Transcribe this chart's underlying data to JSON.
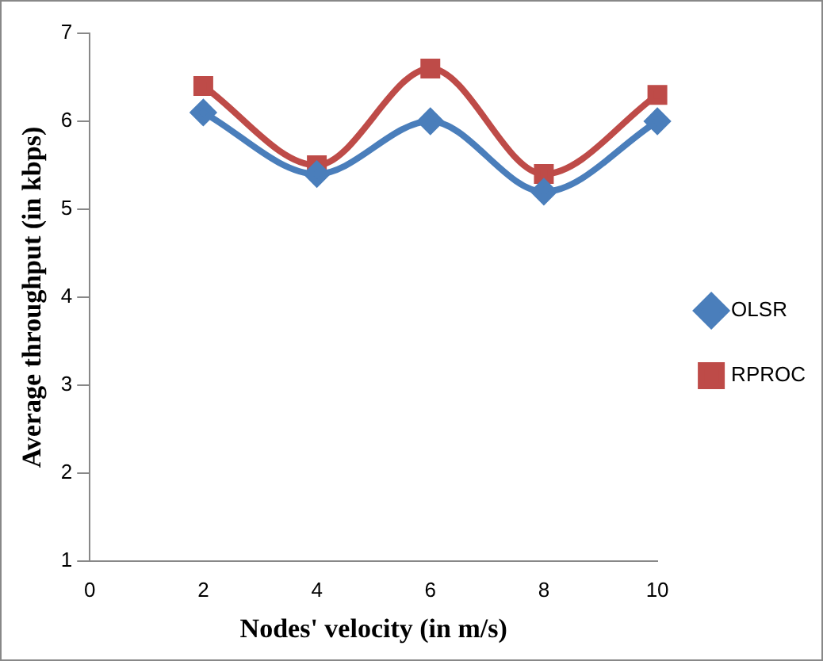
{
  "chart_data": {
    "type": "line",
    "xlabel": "Nodes' velocity (in m/s)",
    "ylabel": "Average throughput (in kbps)",
    "x": [
      2,
      4,
      6,
      8,
      10
    ],
    "series": [
      {
        "name": "OLSR",
        "color": "#4a7ebb",
        "marker": "diamond",
        "values": [
          6.1,
          5.4,
          6.0,
          5.2,
          6.0
        ]
      },
      {
        "name": "RPROC",
        "color": "#be4b48",
        "marker": "square",
        "values": [
          6.4,
          5.5,
          6.6,
          5.4,
          6.3
        ]
      }
    ],
    "xlim": [
      0,
      10
    ],
    "xticks": [
      0,
      2,
      4,
      6,
      8,
      10
    ],
    "ylim": [
      1,
      7
    ],
    "yticks": [
      1,
      2,
      3,
      4,
      5,
      6,
      7
    ],
    "grid": false,
    "legend": "right"
  }
}
